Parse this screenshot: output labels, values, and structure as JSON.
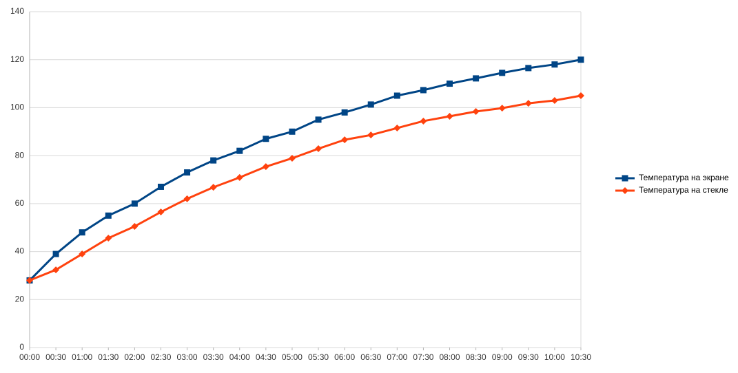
{
  "chart_data": {
    "type": "line",
    "categories": [
      "00:00",
      "00:30",
      "01:00",
      "01:30",
      "02:00",
      "02:30",
      "03:00",
      "03:30",
      "04:00",
      "04:30",
      "05:00",
      "05:30",
      "06:00",
      "06:30",
      "07:00",
      "07:30",
      "08:00",
      "08:30",
      "09:00",
      "09:30",
      "10:00",
      "10:30"
    ],
    "series": [
      {
        "name": "Температура на экране",
        "color": "#004586",
        "marker": "square",
        "values": [
          28,
          39,
          48,
          55,
          60,
          67,
          73,
          78,
          82,
          87,
          90,
          95,
          98,
          101.3,
          105,
          107.3,
          110,
          112.2,
          114.5,
          116.5,
          118,
          120
        ]
      },
      {
        "name": "Температура на стекле",
        "color": "#ff420e",
        "marker": "diamond",
        "values": [
          28,
          32.4,
          39,
          45.6,
          50.5,
          56.5,
          62,
          66.8,
          70.9,
          75.4,
          78.9,
          82.9,
          86.6,
          88.6,
          91.5,
          94.4,
          96.4,
          98.4,
          99.8,
          101.8,
          103,
          105
        ]
      }
    ],
    "ylim": [
      0,
      140
    ],
    "yticks": [
      0,
      20,
      40,
      60,
      80,
      100,
      120,
      140
    ],
    "grid": true,
    "legend": "right"
  }
}
